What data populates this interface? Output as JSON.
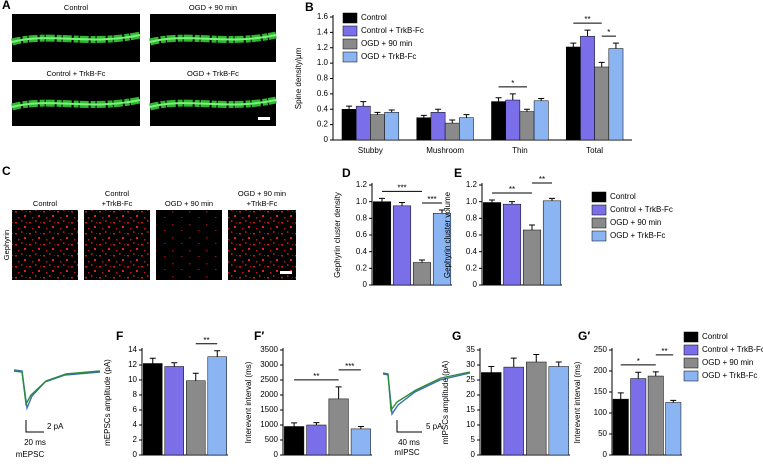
{
  "images": [
    {
      "label": "A",
      "captions": [
        [
          "Control"
        ],
        [
          "OGD + 90 min"
        ],
        [
          "Control + TrkB-Fc"
        ],
        [
          "OGD + TrkB-Fc"
        ]
      ]
    },
    {
      "label": "C",
      "captions": [
        [
          "Control"
        ],
        [
          "Control",
          "+TrkB-Fc"
        ],
        [
          "OGD + 90 min"
        ],
        [
          "OGD + 90 min",
          "+TrkB-Fc"
        ]
      ],
      "side_label": "Gephyrin"
    }
  ],
  "traces": [
    {
      "time_scale": "20 ms",
      "amp_scale": "2 pA",
      "name": "mEPSC"
    },
    {
      "time_scale": "40 ms",
      "amp_scale": "5 pA",
      "name": "mIPSC"
    }
  ],
  "legends": [
    {
      "items": [
        "Control",
        "Control + TrkB-Fc",
        "OGD + 90 min",
        "OGD + TrkB-Fc"
      ],
      "colors": [
        "#000000",
        "#7a6fe8",
        "#8a8a8a",
        "#8ab4f2"
      ]
    },
    {
      "items": [
        "Control",
        "Control + TrkB-Fc",
        "OGD + 90 min",
        "OGD + TrkB-Fc"
      ],
      "colors": [
        "#000000",
        "#7a6fe8",
        "#8a8a8a",
        "#8ab4f2"
      ]
    }
  ],
  "chart_data": [
    {
      "type": "bar",
      "label": "B",
      "ylabel": "Spine density/μm",
      "categories": [
        "Stubby",
        "Mushroom",
        "Thin",
        "Total"
      ],
      "series": [
        {
          "name": "Control",
          "color": "#000000",
          "values": [
            0.4,
            0.29,
            0.5,
            1.21
          ],
          "errors": [
            0.04,
            0.03,
            0.05,
            0.05
          ]
        },
        {
          "name": "Control + TrkB-Fc",
          "color": "#7a6fe8",
          "values": [
            0.44,
            0.36,
            0.52,
            1.35
          ],
          "errors": [
            0.06,
            0.04,
            0.08,
            0.08
          ]
        },
        {
          "name": "OGD + 90 min",
          "color": "#8a8a8a",
          "values": [
            0.33,
            0.22,
            0.37,
            0.95
          ],
          "errors": [
            0.03,
            0.04,
            0.03,
            0.06
          ]
        },
        {
          "name": "OGD + TrkB-Fc",
          "color": "#8ab4f2",
          "values": [
            0.36,
            0.29,
            0.51,
            1.19
          ],
          "errors": [
            0.03,
            0.04,
            0.03,
            0.07
          ]
        }
      ],
      "ylim": [
        0,
        1.6
      ],
      "yticks": [
        0,
        0.2,
        0.4,
        0.6,
        0.8,
        {
          "value": 1,
          "label": "1.0"
        },
        1.2,
        1.4,
        1.6
      ],
      "legend": "upper left",
      "significance": [
        "*",
        "**",
        "*"
      ]
    },
    {
      "type": "bar",
      "label": "D",
      "ylabel": "Gephyrin cluster density",
      "categories": [
        null,
        null,
        null,
        null
      ],
      "values": [
        1.0,
        0.95,
        0.27,
        0.86
      ],
      "errors": [
        0.04,
        0.04,
        0.03,
        0.04
      ],
      "colors": [
        "#000000",
        "#7a6fe8",
        "#8a8a8a",
        "#8ab4f2"
      ],
      "ylim": [
        0,
        1.2
      ],
      "yticks": [
        0,
        0.2,
        0.4,
        0.6,
        0.8,
        {
          "value": 1,
          "label": "1.0"
        },
        1.2
      ],
      "significance": [
        "***",
        "***"
      ]
    },
    {
      "type": "bar",
      "label": "E",
      "ylabel": "Gephyrin cluster volume",
      "categories": [
        null,
        null,
        null,
        null
      ],
      "values": [
        0.99,
        0.97,
        0.66,
        1.01
      ],
      "errors": [
        0.03,
        0.03,
        0.06,
        0.03
      ],
      "colors": [
        "#000000",
        "#7a6fe8",
        "#8a8a8a",
        "#8ab4f2"
      ],
      "ylim": [
        0,
        1.2
      ],
      "yticks": [
        0,
        0.2,
        0.4,
        0.6,
        0.8,
        {
          "value": 1,
          "label": "1.0"
        },
        1.2
      ],
      "significance": [
        "**",
        "**"
      ]
    },
    {
      "type": "bar",
      "label": "F",
      "ylabel": "mEPSCs amplitude (pA)",
      "categories": [
        null,
        null,
        null,
        null
      ],
      "values": [
        12.2,
        11.8,
        9.9,
        13.1
      ],
      "errors": [
        0.7,
        0.5,
        1.0,
        0.8
      ],
      "colors": [
        "#000000",
        "#7a6fe8",
        "#8a8a8a",
        "#8ab4f2"
      ],
      "ylim": [
        0,
        14
      ],
      "yticks": [
        0,
        2,
        4,
        6,
        8,
        10,
        12,
        14
      ],
      "significance": [
        "**"
      ]
    },
    {
      "type": "bar",
      "label": "F′",
      "ylabel": "Interevent interval (ms)",
      "categories": [
        null,
        null,
        null,
        null
      ],
      "values": [
        950,
        1000,
        1870,
        870
      ],
      "errors": [
        120,
        80,
        400,
        80
      ],
      "colors": [
        "#000000",
        "#7a6fe8",
        "#8a8a8a",
        "#8ab4f2"
      ],
      "ylim": [
        0,
        3500
      ],
      "yticks": [
        0,
        500,
        1000,
        1500,
        2000,
        2500,
        3000,
        3500
      ],
      "significance": [
        "**",
        "***"
      ]
    },
    {
      "type": "bar",
      "label": "G",
      "ylabel": "mIPSCs amplitude (pA)",
      "categories": [
        null,
        null,
        null,
        null
      ],
      "values": [
        27.5,
        29.3,
        31,
        29.5
      ],
      "errors": [
        2,
        3,
        2.5,
        1.5
      ],
      "colors": [
        "#000000",
        "#7a6fe8",
        "#8a8a8a",
        "#8ab4f2"
      ],
      "ylim": [
        0,
        35
      ],
      "yticks": [
        0,
        5,
        10,
        15,
        20,
        25,
        30,
        35
      ]
    },
    {
      "type": "bar",
      "label": "G′",
      "ylabel": "Interevent interval (ms)",
      "categories": [
        null,
        null,
        null,
        null
      ],
      "values": [
        133,
        182,
        188,
        125
      ],
      "errors": [
        15,
        15,
        10,
        5
      ],
      "colors": [
        "#000000",
        "#7a6fe8",
        "#8a8a8a",
        "#8ab4f2"
      ],
      "ylim": [
        0,
        250
      ],
      "yticks": [
        0,
        50,
        100,
        150,
        200,
        250
      ],
      "significance": [
        "*",
        "**"
      ]
    }
  ]
}
